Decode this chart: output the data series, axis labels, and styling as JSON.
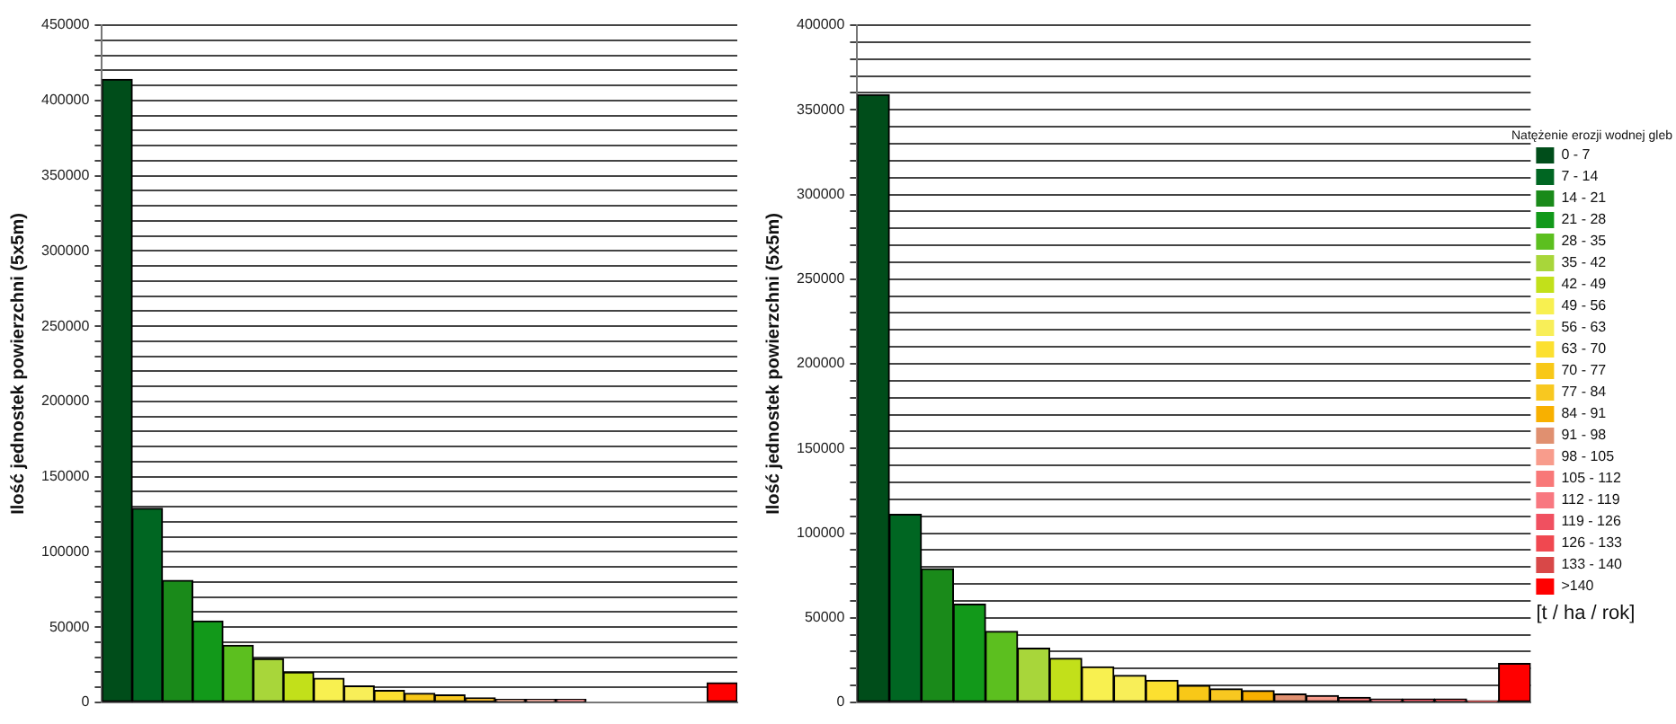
{
  "chart_data": [
    {
      "type": "bar",
      "ylabel": "Ilość jednostek powierzchni (5x5m)",
      "categories": [
        null,
        null,
        null,
        null,
        null,
        null,
        null,
        null,
        null,
        null,
        null,
        null,
        null,
        null,
        null,
        null,
        null,
        null,
        null,
        null,
        null
      ],
      "values": [
        414000,
        129000,
        81000,
        54000,
        38000,
        29000,
        20000,
        16000,
        11000,
        8000,
        6000,
        5000,
        3000,
        2000,
        2000,
        2000,
        null,
        null,
        null,
        null,
        13000
      ],
      "colors": [
        "#004d1a",
        "#006622",
        "#1a8a1a",
        "#12991a",
        "#5cbf1f",
        "#a8d63a",
        "#c2e01a",
        "#f8f050",
        "#f8ee58",
        "#fce030",
        "#f8c818",
        "#f8c820",
        "#f8b000",
        "#e09070",
        "#f89c8c",
        "#f87878",
        "#f87880",
        "#f05060",
        "#f04850",
        "#d84848",
        "#ff0000"
      ],
      "ylim": [
        0,
        450000
      ],
      "yticks": [
        0,
        {
          "value": 10000,
          "label": null
        },
        {
          "value": 20000,
          "label": null
        },
        {
          "value": 30000,
          "label": null
        },
        {
          "value": 40000,
          "label": null
        },
        50000,
        {
          "value": 60000,
          "label": null
        },
        {
          "value": 70000,
          "label": null
        },
        {
          "value": 80000,
          "label": null
        },
        {
          "value": 90000,
          "label": null
        },
        100000,
        {
          "value": 110000,
          "label": null
        },
        {
          "value": 120000,
          "label": null
        },
        {
          "value": 130000,
          "label": null
        },
        {
          "value": 140000,
          "label": null
        },
        150000,
        {
          "value": 160000,
          "label": null
        },
        {
          "value": 170000,
          "label": null
        },
        {
          "value": 180000,
          "label": null
        },
        {
          "value": 190000,
          "label": null
        },
        200000,
        {
          "value": 210000,
          "label": null
        },
        {
          "value": 220000,
          "label": null
        },
        {
          "value": 230000,
          "label": null
        },
        {
          "value": 240000,
          "label": null
        },
        250000,
        {
          "value": 260000,
          "label": null
        },
        {
          "value": 270000,
          "label": null
        },
        {
          "value": 280000,
          "label": null
        },
        {
          "value": 290000,
          "label": null
        },
        300000,
        {
          "value": 310000,
          "label": null
        },
        {
          "value": 320000,
          "label": null
        },
        {
          "value": 330000,
          "label": null
        },
        {
          "value": 340000,
          "label": null
        },
        350000,
        {
          "value": 360000,
          "label": null
        },
        {
          "value": 370000,
          "label": null
        },
        {
          "value": 380000,
          "label": null
        },
        {
          "value": 390000,
          "label": null
        },
        400000,
        {
          "value": 410000,
          "label": null
        },
        {
          "value": 420000,
          "label": null
        },
        {
          "value": 430000,
          "label": null
        },
        {
          "value": 440000,
          "label": null
        },
        450000
      ],
      "grid": "y",
      "tick_labels": "y"
    },
    {
      "type": "bar",
      "ylabel": "Ilość jednostek powierzchni (5x5m)",
      "legend_title": "Natężenie erozji wodnej gleb",
      "legend": "right",
      "annotations": [
        "[t / ha / rok]"
      ],
      "categories": [
        null,
        null,
        null,
        null,
        null,
        null,
        null,
        null,
        null,
        null,
        null,
        null,
        null,
        null,
        null,
        null,
        null,
        null,
        null,
        null,
        null
      ],
      "series": [
        {
          "name": "0 - 7",
          "color": "#004d1a",
          "values": [
            359000,
            null,
            null,
            null,
            null,
            null,
            null,
            null,
            null,
            null,
            null,
            null,
            null,
            null,
            null,
            null,
            null,
            null,
            null,
            null,
            null
          ]
        },
        {
          "name": "7 - 14",
          "color": "#006622",
          "values": [
            null,
            111000,
            null,
            null,
            null,
            null,
            null,
            null,
            null,
            null,
            null,
            null,
            null,
            null,
            null,
            null,
            null,
            null,
            null,
            null,
            null
          ]
        },
        {
          "name": "14 - 21",
          "color": "#1a8a1a",
          "values": [
            null,
            null,
            79000,
            null,
            null,
            null,
            null,
            null,
            null,
            null,
            null,
            null,
            null,
            null,
            null,
            null,
            null,
            null,
            null,
            null,
            null
          ]
        },
        {
          "name": "21 - 28",
          "color": "#12991a",
          "values": [
            null,
            null,
            null,
            58000,
            null,
            null,
            null,
            null,
            null,
            null,
            null,
            null,
            null,
            null,
            null,
            null,
            null,
            null,
            null,
            null,
            null
          ]
        },
        {
          "name": "28 - 35",
          "color": "#5cbf1f",
          "values": [
            null,
            null,
            null,
            null,
            42000,
            null,
            null,
            null,
            null,
            null,
            null,
            null,
            null,
            null,
            null,
            null,
            null,
            null,
            null,
            null,
            null
          ]
        },
        {
          "name": "35 - 42",
          "color": "#a8d63a",
          "values": [
            null,
            null,
            null,
            null,
            null,
            32000,
            null,
            null,
            null,
            null,
            null,
            null,
            null,
            null,
            null,
            null,
            null,
            null,
            null,
            null,
            null
          ]
        },
        {
          "name": "42 - 49",
          "color": "#c2e01a",
          "values": [
            null,
            null,
            null,
            null,
            null,
            null,
            26000,
            null,
            null,
            null,
            null,
            null,
            null,
            null,
            null,
            null,
            null,
            null,
            null,
            null,
            null
          ]
        },
        {
          "name": "49 - 56",
          "color": "#f8f050",
          "values": [
            null,
            null,
            null,
            null,
            null,
            null,
            null,
            21000,
            null,
            null,
            null,
            null,
            null,
            null,
            null,
            null,
            null,
            null,
            null,
            null,
            null
          ]
        },
        {
          "name": "56 - 63",
          "color": "#f8ee58",
          "values": [
            null,
            null,
            null,
            null,
            null,
            null,
            null,
            null,
            16000,
            null,
            null,
            null,
            null,
            null,
            null,
            null,
            null,
            null,
            null,
            null,
            null
          ]
        },
        {
          "name": "63 - 70",
          "color": "#fce030",
          "values": [
            null,
            null,
            null,
            null,
            null,
            null,
            null,
            null,
            null,
            13000,
            null,
            null,
            null,
            null,
            null,
            null,
            null,
            null,
            null,
            null,
            null
          ]
        },
        {
          "name": "70 - 77",
          "color": "#f8c818",
          "values": [
            null,
            null,
            null,
            null,
            null,
            null,
            null,
            null,
            null,
            null,
            10000,
            null,
            null,
            null,
            null,
            null,
            null,
            null,
            null,
            null,
            null
          ]
        },
        {
          "name": "77 - 84",
          "color": "#f8c820",
          "values": [
            null,
            null,
            null,
            null,
            null,
            null,
            null,
            null,
            null,
            null,
            null,
            8000,
            null,
            null,
            null,
            null,
            null,
            null,
            null,
            null,
            null
          ]
        },
        {
          "name": "84 - 91",
          "color": "#f8b000",
          "values": [
            null,
            null,
            null,
            null,
            null,
            null,
            null,
            null,
            null,
            null,
            null,
            null,
            7000,
            null,
            null,
            null,
            null,
            null,
            null,
            null,
            null
          ]
        },
        {
          "name": "91 - 98",
          "color": "#e09070",
          "values": [
            null,
            null,
            null,
            null,
            null,
            null,
            null,
            null,
            null,
            null,
            null,
            null,
            null,
            5000,
            null,
            null,
            null,
            null,
            null,
            null,
            null
          ]
        },
        {
          "name": "98 - 105",
          "color": "#f89c8c",
          "values": [
            null,
            null,
            null,
            null,
            null,
            null,
            null,
            null,
            null,
            null,
            null,
            null,
            null,
            null,
            4000,
            null,
            null,
            null,
            null,
            null,
            null
          ]
        },
        {
          "name": "105 - 112",
          "color": "#f87878",
          "values": [
            null,
            null,
            null,
            null,
            null,
            null,
            null,
            null,
            null,
            null,
            null,
            null,
            null,
            null,
            null,
            3000,
            null,
            null,
            null,
            null,
            null
          ]
        },
        {
          "name": "112 - 119",
          "color": "#f87880",
          "values": [
            null,
            null,
            null,
            null,
            null,
            null,
            null,
            null,
            null,
            null,
            null,
            null,
            null,
            null,
            null,
            null,
            2000,
            null,
            null,
            null,
            null
          ]
        },
        {
          "name": "119 - 126",
          "color": "#f05060",
          "values": [
            null,
            null,
            null,
            null,
            null,
            null,
            null,
            null,
            null,
            null,
            null,
            null,
            null,
            null,
            null,
            null,
            null,
            2000,
            null,
            null,
            null
          ]
        },
        {
          "name": "126 - 133",
          "color": "#f04850",
          "values": [
            null,
            null,
            null,
            null,
            null,
            null,
            null,
            null,
            null,
            null,
            null,
            null,
            null,
            null,
            null,
            null,
            null,
            null,
            2000,
            null,
            null
          ]
        },
        {
          "name": "133 - 140",
          "color": "#d84848",
          "values": [
            null,
            null,
            null,
            null,
            null,
            null,
            null,
            null,
            null,
            null,
            null,
            null,
            null,
            null,
            null,
            null,
            null,
            null,
            null,
            1000,
            null
          ]
        },
        {
          "name": ">140",
          "color": "#ff0000",
          "values": [
            null,
            null,
            null,
            null,
            null,
            null,
            null,
            null,
            null,
            null,
            null,
            null,
            null,
            null,
            null,
            null,
            null,
            null,
            null,
            null,
            23000
          ]
        }
      ],
      "ylim": [
        0,
        400000
      ],
      "yticks": [
        0,
        {
          "value": 10000,
          "label": null
        },
        {
          "value": 20000,
          "label": null
        },
        {
          "value": 30000,
          "label": null
        },
        {
          "value": 40000,
          "label": null
        },
        50000,
        {
          "value": 60000,
          "label": null
        },
        {
          "value": 70000,
          "label": null
        },
        {
          "value": 80000,
          "label": null
        },
        {
          "value": 90000,
          "label": null
        },
        100000,
        {
          "value": 110000,
          "label": null
        },
        {
          "value": 120000,
          "label": null
        },
        {
          "value": 130000,
          "label": null
        },
        {
          "value": 140000,
          "label": null
        },
        150000,
        {
          "value": 160000,
          "label": null
        },
        {
          "value": 170000,
          "label": null
        },
        {
          "value": 180000,
          "label": null
        },
        {
          "value": 190000,
          "label": null
        },
        200000,
        {
          "value": 210000,
          "label": null
        },
        {
          "value": 220000,
          "label": null
        },
        {
          "value": 230000,
          "label": null
        },
        {
          "value": 240000,
          "label": null
        },
        250000,
        {
          "value": 260000,
          "label": null
        },
        {
          "value": 270000,
          "label": null
        },
        {
          "value": 280000,
          "label": null
        },
        {
          "value": 290000,
          "label": null
        },
        300000,
        {
          "value": 310000,
          "label": null
        },
        {
          "value": 320000,
          "label": null
        },
        {
          "value": 330000,
          "label": null
        },
        {
          "value": 340000,
          "label": null
        },
        350000,
        {
          "value": 360000,
          "label": null
        },
        {
          "value": 370000,
          "label": null
        },
        {
          "value": 380000,
          "label": null
        },
        {
          "value": 390000,
          "label": null
        },
        400000
      ],
      "grid": "y",
      "tick_labels": "y"
    }
  ]
}
